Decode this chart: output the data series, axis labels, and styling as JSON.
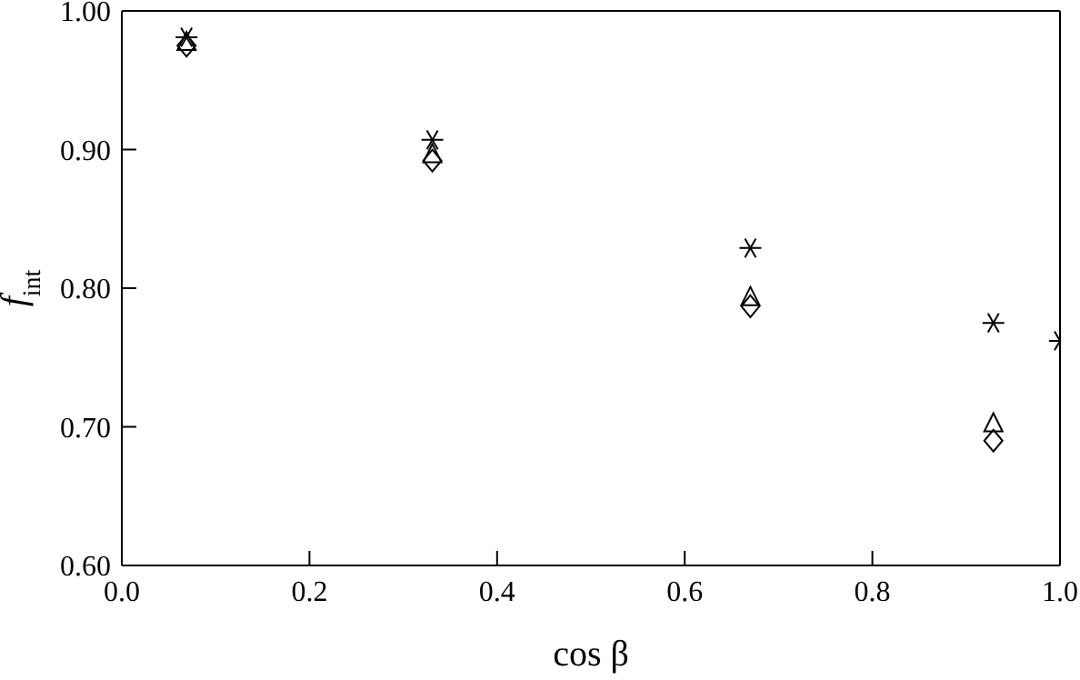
{
  "chart_data": {
    "type": "scatter",
    "xlabel": "cos β",
    "ylabel": "f$_{int}$",
    "xlim": [
      0,
      1
    ],
    "xticks": [
      {
        "value": 0,
        "label": "0.0"
      },
      {
        "value": 0.2,
        "label": "0.2"
      },
      {
        "value": 0.4,
        "label": "0.4"
      },
      {
        "value": 0.6,
        "label": "0.6"
      },
      {
        "value": 0.8,
        "label": "0.8"
      },
      {
        "value": 1,
        "label": "1.0"
      }
    ],
    "ylim": [
      0.6,
      1
    ],
    "yticks": [
      {
        "value": 0.6,
        "label": "0.60"
      },
      {
        "value": 0.7,
        "label": "0.70"
      },
      {
        "value": 0.8,
        "label": "0.80"
      },
      {
        "value": 0.9,
        "label": "0.90"
      },
      {
        "value": 1,
        "label": "1.00"
      }
    ],
    "series": [
      {
        "color": "#000000",
        "marker": "cross",
        "x": [
          0.069,
          0.331,
          0.67,
          0.929,
          1.0
        ],
        "values": [
          0.981,
          0.907,
          0.829,
          0.775,
          0.762
        ]
      },
      {
        "color": "#000000",
        "marker": "triangle",
        "x": [
          0.069,
          0.331,
          0.67,
          0.929
        ],
        "values": [
          0.977,
          0.896,
          0.793,
          0.702
        ]
      },
      {
        "color": "#000000",
        "marker": "diamond",
        "x": [
          0.069,
          0.331,
          0.67,
          0.929
        ],
        "values": [
          0.975,
          0.892,
          0.787,
          0.69
        ]
      }
    ]
  }
}
